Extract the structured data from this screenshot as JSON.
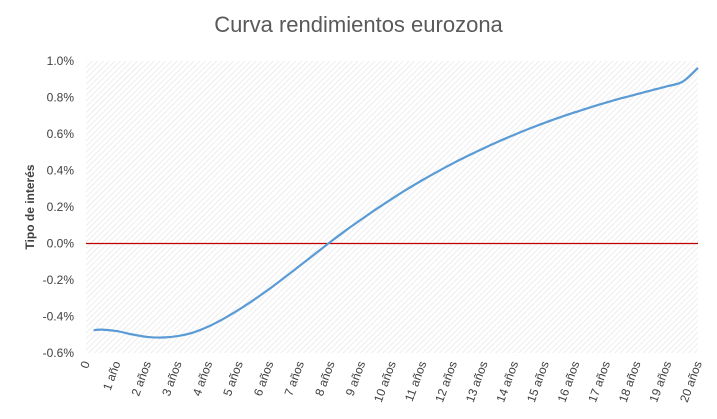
{
  "chart_data": {
    "type": "line",
    "title": "Curva rendimientos eurozona",
    "xlabel": "",
    "ylabel": "Tipo de interés",
    "ylim": [
      -0.6,
      1.0
    ],
    "y_tick_labels": [
      "1.0%",
      "0.8%",
      "0.6%",
      "0.4%",
      "0.2%",
      "0.0%",
      "-0.2%",
      "-0.4%",
      "-0.6%"
    ],
    "y_tick_values": [
      1.0,
      0.8,
      0.6,
      0.4,
      0.2,
      0.0,
      -0.2,
      -0.4,
      -0.6
    ],
    "x_tick_labels": [
      "0",
      "1 año",
      "2 años",
      "3 años",
      "4 años",
      "5 años",
      "6 años",
      "7 años",
      "8 años",
      "9 años",
      "10 años",
      "11 años",
      "12 años",
      "13 años",
      "14 años",
      "15 años",
      "16 años",
      "17 años",
      "18 años",
      "19 años",
      "20 años"
    ],
    "xlim": [
      0,
      20
    ],
    "grid": "hatched background",
    "reference_line": {
      "y": 0.0,
      "color": "#c00000"
    },
    "series": [
      {
        "color": "#5b9bd5",
        "x": [
          0.25,
          0.5,
          1,
          1.5,
          2,
          2.5,
          3,
          3.5,
          4,
          4.5,
          5,
          5.5,
          6,
          6.5,
          7,
          7.5,
          8,
          8.5,
          9,
          9.5,
          10,
          10.5,
          11,
          11.5,
          12,
          12.5,
          13,
          13.5,
          14,
          14.5,
          15,
          15.5,
          16,
          16.5,
          17,
          17.5,
          18,
          18.5,
          19,
          19.5,
          20
        ],
        "y": [
          -0.475,
          -0.472,
          -0.48,
          -0.498,
          -0.512,
          -0.515,
          -0.507,
          -0.488,
          -0.455,
          -0.412,
          -0.362,
          -0.307,
          -0.248,
          -0.185,
          -0.12,
          -0.055,
          0.01,
          0.073,
          0.132,
          0.19,
          0.245,
          0.298,
          0.348,
          0.395,
          0.44,
          0.482,
          0.522,
          0.56,
          0.596,
          0.63,
          0.662,
          0.692,
          0.72,
          0.747,
          0.772,
          0.796,
          0.818,
          0.84,
          0.862,
          0.887,
          0.962
        ]
      }
    ]
  }
}
